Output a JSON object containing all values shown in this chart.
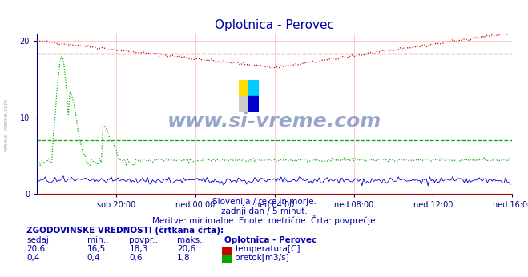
{
  "title": "Oplotnica - Perovec",
  "bg_color": "#ffffff",
  "plot_bg_color": "#ffffff",
  "grid_color": "#ffb6b6",
  "axis_color": "#000080",
  "title_color": "#0000aa",
  "text_color": "#0000aa",
  "xlabel_ticks": [
    "sob 20:00",
    "ned 00:00",
    "ned 04:00",
    "ned 08:00",
    "ned 12:00",
    "ned 16:00"
  ],
  "yticks": [
    0,
    10,
    20
  ],
  "ylim": [
    0,
    21
  ],
  "xlim": [
    0,
    288
  ],
  "temp_avg": 18.3,
  "temp_min": 16.5,
  "temp_max": 20.6,
  "temp_current": 20.6,
  "flow_avg": 0.6,
  "flow_min": 0.4,
  "flow_max": 1.8,
  "flow_current": 0.4,
  "temp_color": "#cc0000",
  "flow_color": "#00aa00",
  "height_color": "#0000cc",
  "watermark_text": "www.si-vreme.com",
  "watermark_color": "#1a3a8a",
  "sub_text1": "Slovenija / reke in morje.",
  "sub_text2": "zadnji dan / 5 minut.",
  "sub_text3": "Meritve: minimalne  Enote: metrične  Črta: povprečje",
  "legend_title": "ZGODOVINSKE VREDNOSTI (črtkana črta):",
  "legend_headers": [
    "sedaj:",
    "min.:",
    "povpr.:",
    "maks.:",
    "Oplotnica - Perovec"
  ],
  "legend_row1": [
    "20,6",
    "16,5",
    "18,3",
    "20,6",
    "temperatura[C]"
  ],
  "legend_row2": [
    "0,4",
    "0,4",
    "0,6",
    "1,8",
    "pretok[m3/s]"
  ]
}
